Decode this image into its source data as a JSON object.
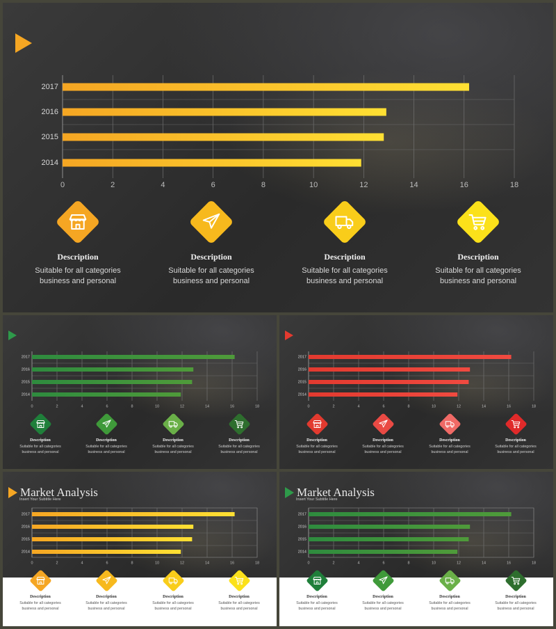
{
  "chart_data": {
    "type": "bar",
    "orientation": "horizontal",
    "categories": [
      "2017",
      "2016",
      "2015",
      "2014"
    ],
    "values": [
      16.2,
      12.9,
      12.8,
      11.9
    ],
    "xticks": [
      "0",
      "2",
      "4",
      "6",
      "8",
      "10",
      "12",
      "14",
      "16",
      "18"
    ],
    "xlim": [
      0,
      18
    ],
    "grid": true
  },
  "slide_title": "Market Analysis",
  "slide_subtitle": "Insert Your Subtitle Here",
  "features": [
    {
      "icon": "store-icon",
      "title": "Description",
      "line1": "Suitable for all categories",
      "line2": "business and personal"
    },
    {
      "icon": "airplane-icon",
      "title": "Description",
      "line1": "Suitable for all categories",
      "line2": "business and personal"
    },
    {
      "icon": "truck-icon",
      "title": "Description",
      "line1": "Suitable for all categories",
      "line2": "business and personal"
    },
    {
      "icon": "cart-icon",
      "title": "Description",
      "line1": "Suitable for all categories",
      "line2": "business and personal"
    }
  ],
  "themes": {
    "orange": {
      "accent": "#f5a623",
      "bar_start": "#f5a623",
      "bar_end": "#ffe033",
      "icons": [
        "#f5a623",
        "#f7b91d",
        "#f9cd1a",
        "#fbe11a"
      ]
    },
    "green": {
      "accent": "#2e9a4a",
      "bar_start": "#2e8b3e",
      "bar_end": "#4f9b3a",
      "icons": [
        "#1f7f3a",
        "#3f9a3a",
        "#6ab048",
        "#2e6e2e"
      ]
    },
    "red": {
      "accent": "#e53a2f",
      "bar_start": "#e23a2f",
      "bar_end": "#f04a40",
      "icons": [
        "#e23a2f",
        "#ea4a44",
        "#f06a66",
        "#e02a2a"
      ]
    }
  }
}
